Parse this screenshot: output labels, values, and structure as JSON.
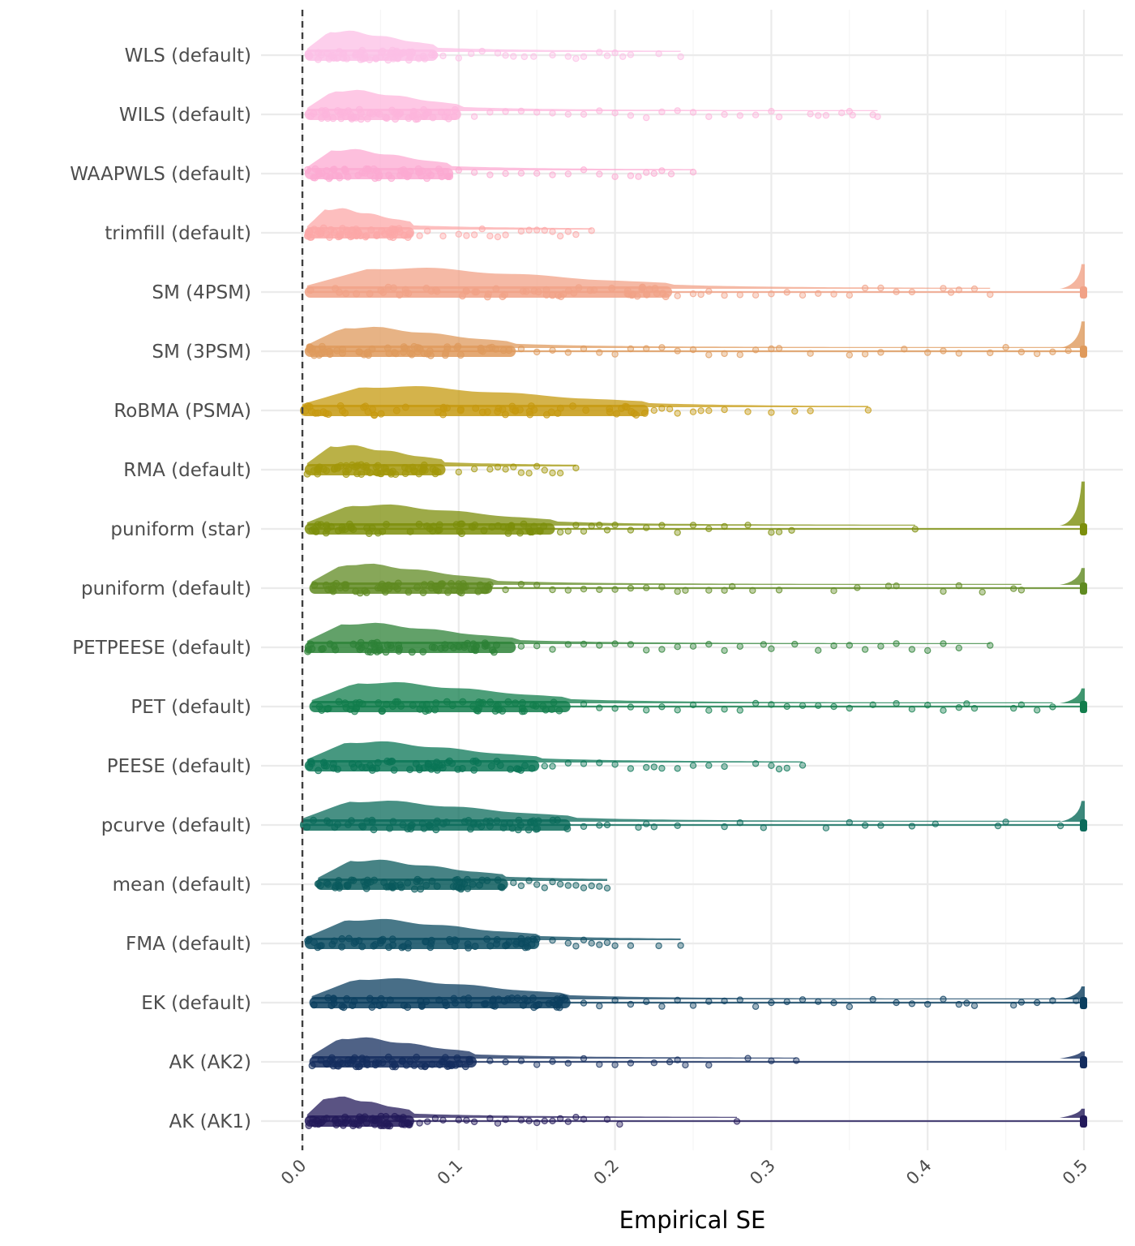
{
  "chart_data": {
    "type": "raincloud",
    "xlabel": "Empirical SE",
    "ylabel": "",
    "xlim": [
      0,
      0.5
    ],
    "x_ticks": [
      "0.0",
      "0.1",
      "0.2",
      "0.3",
      "0.4",
      "0.5"
    ],
    "grid": true,
    "reference_line": {
      "x": 0,
      "style": "dashed"
    },
    "series": [
      {
        "label": "WLS (default)",
        "color": "#fcbfe6",
        "bulk": [
          0.003,
          0.085
        ],
        "tail": [
          0.09,
          0.1,
          0.108,
          0.115,
          0.125,
          0.13,
          0.135,
          0.142,
          0.148,
          0.16,
          0.17,
          0.175,
          0.18,
          0.19,
          0.195,
          0.2,
          0.205,
          0.21,
          0.228,
          0.242
        ],
        "max": 0.242
      },
      {
        "label": "WILS (default)",
        "color": "#fdb5dc",
        "bulk": [
          0.003,
          0.1
        ],
        "tail": [
          0.11,
          0.12,
          0.13,
          0.14,
          0.15,
          0.16,
          0.17,
          0.18,
          0.19,
          0.2,
          0.21,
          0.22,
          0.23,
          0.24,
          0.25,
          0.26,
          0.27,
          0.28,
          0.29,
          0.3,
          0.305,
          0.325,
          0.33,
          0.335,
          0.345,
          0.35,
          0.352,
          0.365,
          0.368
        ],
        "max": 0.368
      },
      {
        "label": "WAAPWLS (default)",
        "color": "#fcaad2",
        "bulk": [
          0.003,
          0.095
        ],
        "tail": [
          0.1,
          0.11,
          0.12,
          0.13,
          0.14,
          0.15,
          0.16,
          0.17,
          0.18,
          0.19,
          0.2,
          0.21,
          0.215,
          0.22,
          0.225,
          0.23,
          0.236,
          0.25
        ],
        "max": 0.25
      },
      {
        "label": "trimfill (default)",
        "color": "#fca8a8",
        "bulk": [
          0.003,
          0.07
        ],
        "tail": [
          0.075,
          0.08,
          0.09,
          0.1,
          0.105,
          0.11,
          0.115,
          0.12,
          0.125,
          0.13,
          0.14,
          0.145,
          0.15,
          0.155,
          0.16,
          0.165,
          0.17,
          0.175,
          0.185
        ],
        "max": 0.185
      },
      {
        "label": "SM (4PSM)",
        "color": "#f1a287",
        "bulk": [
          0.003,
          0.235
        ],
        "tail": [
          0.24,
          0.25,
          0.255,
          0.26,
          0.27,
          0.28,
          0.29,
          0.3,
          0.31,
          0.32,
          0.33,
          0.34,
          0.35,
          0.36,
          0.37,
          0.38,
          0.39,
          0.41,
          0.415,
          0.42,
          0.43,
          0.44
        ],
        "max": 0.5,
        "spike_at_max": true,
        "spike_height": 0.55
      },
      {
        "label": "SM (3PSM)",
        "color": "#df9a5c",
        "bulk": [
          0.003,
          0.135
        ],
        "tail": [
          0.14,
          0.15,
          0.16,
          0.17,
          0.18,
          0.19,
          0.2,
          0.21,
          0.22,
          0.23,
          0.24,
          0.25,
          0.26,
          0.27,
          0.28,
          0.29,
          0.3,
          0.305,
          0.325,
          0.35,
          0.36,
          0.37,
          0.385,
          0.4,
          0.41,
          0.42,
          0.44,
          0.45,
          0.46,
          0.47,
          0.48,
          0.49
        ],
        "max": 0.5,
        "spike_at_max": true,
        "spike_height": 0.6
      },
      {
        "label": "RoBMA (PSMA)",
        "color": "#c6990f",
        "bulk": [
          0.0,
          0.22
        ],
        "tail": [
          0.225,
          0.23,
          0.235,
          0.24,
          0.25,
          0.255,
          0.26,
          0.27,
          0.285,
          0.3,
          0.315,
          0.325,
          0.362
        ],
        "max": 0.362
      },
      {
        "label": "RMA (default)",
        "color": "#a3970a",
        "bulk": [
          0.003,
          0.09
        ],
        "tail": [
          0.1,
          0.11,
          0.12,
          0.125,
          0.13,
          0.135,
          0.14,
          0.145,
          0.15,
          0.155,
          0.16,
          0.165,
          0.175
        ],
        "max": 0.175
      },
      {
        "label": "puniform (star)",
        "color": "#7c8e0b",
        "bulk": [
          0.003,
          0.16
        ],
        "tail": [
          0.165,
          0.17,
          0.175,
          0.18,
          0.185,
          0.19,
          0.195,
          0.2,
          0.21,
          0.22,
          0.23,
          0.24,
          0.25,
          0.26,
          0.27,
          0.285,
          0.3,
          0.305,
          0.313,
          0.392
        ],
        "max": 0.5,
        "spike_at_max": true,
        "spike_height": 1.05
      },
      {
        "label": "puniform (default)",
        "color": "#5f8a21",
        "bulk": [
          0.006,
          0.12
        ],
        "tail": [
          0.13,
          0.14,
          0.15,
          0.16,
          0.17,
          0.18,
          0.19,
          0.2,
          0.21,
          0.22,
          0.23,
          0.24,
          0.245,
          0.26,
          0.27,
          0.275,
          0.288,
          0.305,
          0.34,
          0.355,
          0.375,
          0.38,
          0.41,
          0.42,
          0.435,
          0.455,
          0.46
        ],
        "max": 0.5,
        "spike_at_max": true,
        "spike_height": 0.35
      },
      {
        "label": "PETPEESE (default)",
        "color": "#2d8237",
        "bulk": [
          0.003,
          0.135
        ],
        "tail": [
          0.14,
          0.15,
          0.16,
          0.17,
          0.18,
          0.19,
          0.2,
          0.21,
          0.22,
          0.23,
          0.24,
          0.25,
          0.26,
          0.27,
          0.28,
          0.295,
          0.3,
          0.315,
          0.33,
          0.34,
          0.35,
          0.36,
          0.37,
          0.38,
          0.39,
          0.4,
          0.41,
          0.42,
          0.44
        ],
        "max": 0.44
      },
      {
        "label": "PET (default)",
        "color": "#127d4c",
        "bulk": [
          0.006,
          0.17
        ],
        "tail": [
          0.18,
          0.19,
          0.2,
          0.21,
          0.22,
          0.23,
          0.24,
          0.25,
          0.26,
          0.27,
          0.28,
          0.29,
          0.3,
          0.31,
          0.32,
          0.33,
          0.34,
          0.35,
          0.365,
          0.38,
          0.39,
          0.4,
          0.41,
          0.42,
          0.425,
          0.43,
          0.455,
          0.46,
          0.47,
          0.48
        ],
        "max": 0.5,
        "spike_at_max": true,
        "spike_height": 0.3
      },
      {
        "label": "PEESE (default)",
        "color": "#0a7556",
        "bulk": [
          0.003,
          0.15
        ],
        "tail": [
          0.155,
          0.16,
          0.17,
          0.18,
          0.19,
          0.2,
          0.21,
          0.22,
          0.225,
          0.23,
          0.24,
          0.25,
          0.26,
          0.27,
          0.29,
          0.3,
          0.305,
          0.31,
          0.32
        ],
        "max": 0.32
      },
      {
        "label": "pcurve (default)",
        "color": "#0b6b5b",
        "bulk": [
          0.0,
          0.17
        ],
        "tail": [
          0.18,
          0.19,
          0.195,
          0.215,
          0.22,
          0.225,
          0.24,
          0.27,
          0.28,
          0.295,
          0.335,
          0.35,
          0.36,
          0.37,
          0.39,
          0.405,
          0.445,
          0.45,
          0.485
        ],
        "max": 0.5,
        "spike_at_max": true,
        "spike_height": 0.45
      },
      {
        "label": "mean (default)",
        "color": "#0a5a5c",
        "bulk": [
          0.01,
          0.13
        ],
        "tail": [
          0.135,
          0.14,
          0.145,
          0.15,
          0.155,
          0.16,
          0.165,
          0.17,
          0.175,
          0.18,
          0.185,
          0.19,
          0.195
        ],
        "max": 0.195
      },
      {
        "label": "FMA (default)",
        "color": "#0b4b60",
        "bulk": [
          0.003,
          0.15
        ],
        "tail": [
          0.16,
          0.17,
          0.175,
          0.18,
          0.185,
          0.19,
          0.195,
          0.2,
          0.21,
          0.228,
          0.242
        ],
        "max": 0.242
      },
      {
        "label": "EK (default)",
        "color": "#0b3e5f",
        "bulk": [
          0.006,
          0.17
        ],
        "tail": [
          0.18,
          0.19,
          0.2,
          0.21,
          0.22,
          0.23,
          0.24,
          0.25,
          0.26,
          0.27,
          0.28,
          0.29,
          0.3,
          0.31,
          0.32,
          0.33,
          0.34,
          0.35,
          0.365,
          0.38,
          0.39,
          0.4,
          0.41,
          0.42,
          0.425,
          0.43,
          0.455,
          0.46,
          0.47,
          0.48,
          0.495
        ],
        "max": 0.5,
        "spike_at_max": true,
        "spike_height": 0.25
      },
      {
        "label": "AK (AK2)",
        "color": "#142d5e",
        "bulk": [
          0.006,
          0.11
        ],
        "tail": [
          0.12,
          0.13,
          0.14,
          0.15,
          0.16,
          0.17,
          0.18,
          0.19,
          0.2,
          0.21,
          0.225,
          0.235,
          0.24,
          0.245,
          0.26,
          0.285,
          0.3,
          0.316
        ],
        "max": 0.5,
        "spike_at_max": true,
        "spike_height": 0.1
      },
      {
        "label": "AK (AK1)",
        "color": "#231a5a",
        "bulk": [
          0.003,
          0.07
        ],
        "tail": [
          0.075,
          0.08,
          0.085,
          0.09,
          0.1,
          0.105,
          0.11,
          0.12,
          0.125,
          0.13,
          0.14,
          0.145,
          0.15,
          0.155,
          0.16,
          0.165,
          0.17,
          0.175,
          0.18,
          0.195,
          0.203,
          0.278
        ],
        "max": 0.5,
        "spike_at_max": true,
        "spike_height": 0.15
      }
    ]
  }
}
